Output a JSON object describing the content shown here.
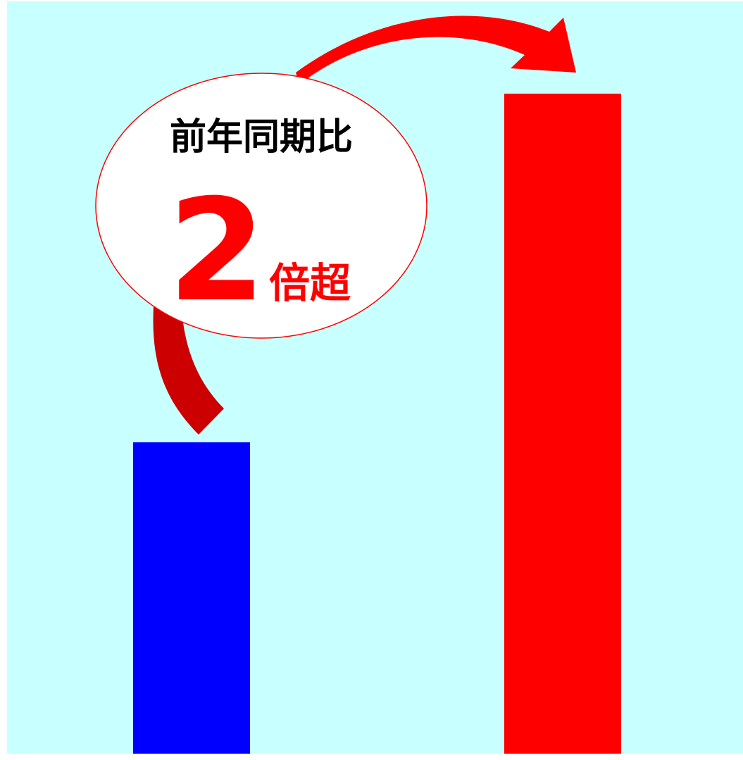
{
  "chart_data": {
    "type": "bar",
    "categories": [
      "",
      ""
    ],
    "values": [
      1,
      2.12
    ],
    "colors": [
      "#0000ff",
      "#ff0000"
    ],
    "xlabel": "",
    "ylabel": "",
    "grid": false,
    "legend": "none"
  },
  "callout": {
    "line1": "前年同期比",
    "multiplier": "2",
    "suffix": "倍超"
  },
  "colors": {
    "background": "#c8ffff",
    "arrow_dark": "#cc0000",
    "arrow_bright": "#ff0000",
    "bubble_fill": "#ffffff",
    "bubble_stroke": "#ff0000",
    "text_dark": "#000000",
    "text_accent": "#ff0000"
  }
}
